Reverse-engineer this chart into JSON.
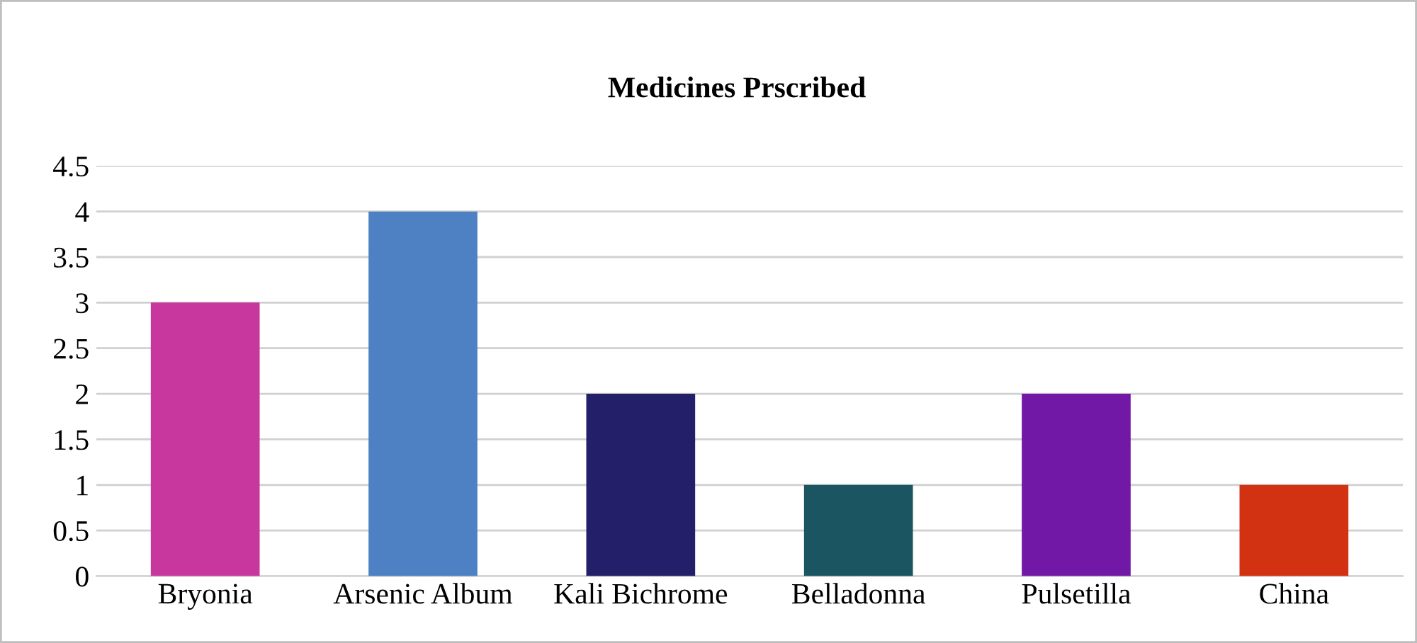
{
  "chart_data": {
    "type": "bar",
    "title": "Medicines Prscribed",
    "categories": [
      "Bryonia",
      "Arsenic Album",
      "Kali Bichrome",
      "Belladonna",
      "Pulsetilla",
      "China"
    ],
    "values": [
      3,
      4,
      2,
      1,
      2,
      1
    ],
    "colors": [
      "#c8379e",
      "#4e81c3",
      "#232069",
      "#1b5562",
      "#7119a6",
      "#d23112"
    ],
    "ylim": [
      0,
      4.5
    ],
    "yticks": [
      0,
      0.5,
      1,
      1.5,
      2,
      2.5,
      3,
      3.5,
      4,
      4.5
    ],
    "grid": "y"
  }
}
